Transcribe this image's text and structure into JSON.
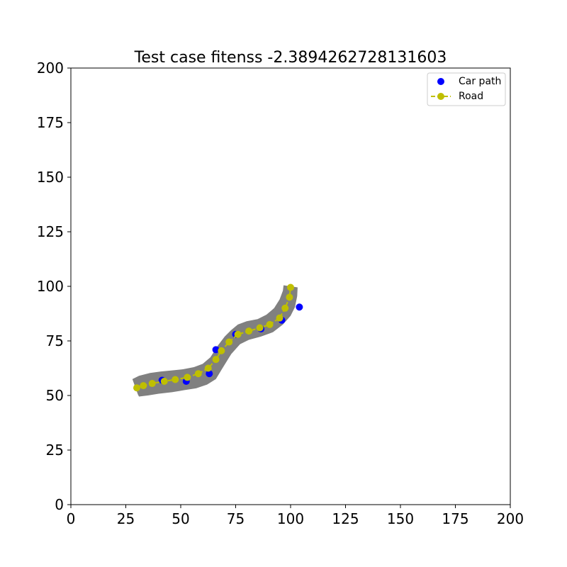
{
  "chart_data": {
    "type": "scatter",
    "title": "Test case fitenss -2.3894262728131603",
    "xlabel": "",
    "ylabel": "",
    "xlim": [
      0,
      200
    ],
    "ylim": [
      0,
      200
    ],
    "xticks": [
      0,
      25,
      50,
      75,
      100,
      125,
      150,
      175,
      200
    ],
    "yticks": [
      0,
      25,
      50,
      75,
      100,
      125,
      150,
      175,
      200
    ],
    "grid": false,
    "legend_position": "top-right",
    "road_area": {
      "color": "#808080",
      "polygon": [
        [
          28,
          57.5
        ],
        [
          31,
          59
        ],
        [
          36,
          60.3
        ],
        [
          41,
          61
        ],
        [
          46,
          61.5
        ],
        [
          51,
          62
        ],
        [
          56,
          63
        ],
        [
          60,
          64.5
        ],
        [
          63.5,
          67.5
        ],
        [
          67,
          73
        ],
        [
          70,
          77
        ],
        [
          73,
          80
        ],
        [
          76,
          82.5
        ],
        [
          80,
          84
        ],
        [
          85,
          85
        ],
        [
          89,
          87
        ],
        [
          92.5,
          90
        ],
        [
          95,
          94
        ],
        [
          96.5,
          98
        ],
        [
          96.8,
          100.5
        ],
        [
          103.2,
          99.5
        ],
        [
          103,
          95.5
        ],
        [
          102,
          90.5
        ],
        [
          100,
          86.5
        ],
        [
          96.5,
          82.5
        ],
        [
          92,
          79
        ],
        [
          86.5,
          77
        ],
        [
          81,
          75.5
        ],
        [
          77,
          73.5
        ],
        [
          73,
          69
        ],
        [
          69,
          62.5
        ],
        [
          66,
          57.5
        ],
        [
          62,
          55
        ],
        [
          57,
          53.3
        ],
        [
          52,
          52.5
        ],
        [
          46,
          51.5
        ],
        [
          40,
          50.8
        ],
        [
          35,
          50
        ],
        [
          31,
          49.5
        ],
        [
          30.5,
          50.5
        ]
      ]
    },
    "series": [
      {
        "name": "Car path",
        "marker": "circle",
        "line": "none",
        "color": "#0000ff",
        "points": [
          [
            41.5,
            57
          ],
          [
            52.5,
            56.5
          ],
          [
            63,
            60
          ],
          [
            66,
            71
          ],
          [
            75,
            78
          ],
          [
            86.5,
            80.5
          ],
          [
            96,
            84.5
          ],
          [
            104,
            90.5
          ]
        ]
      },
      {
        "name": "Road",
        "marker": "circle",
        "line": "dashed",
        "color": "#bfbf00",
        "points": [
          [
            30,
            53.5
          ],
          [
            33,
            54.5
          ],
          [
            37,
            55.5
          ],
          [
            42.5,
            56.5
          ],
          [
            47.5,
            57.3
          ],
          [
            53,
            58.3
          ],
          [
            58,
            60
          ],
          [
            62.5,
            62.5
          ],
          [
            66,
            66.5
          ],
          [
            68.5,
            70.5
          ],
          [
            72,
            74.5
          ],
          [
            76,
            78
          ],
          [
            81,
            79.5
          ],
          [
            86,
            81
          ],
          [
            90.5,
            82.5
          ],
          [
            95,
            85.5
          ],
          [
            97.5,
            90
          ],
          [
            99.5,
            95
          ],
          [
            100,
            99.5
          ]
        ]
      }
    ]
  }
}
